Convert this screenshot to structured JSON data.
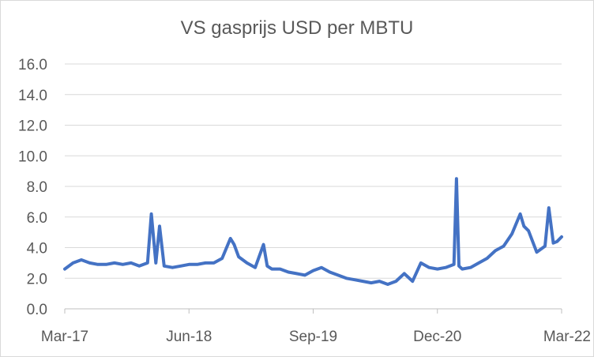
{
  "chart_data": {
    "type": "line",
    "title": "VS gasprijs USD per MBTU",
    "xlabel": "",
    "ylabel": "",
    "x_range": [
      "Mar-17",
      "Mar-22"
    ],
    "x_ticks": [
      "Mar-17",
      "Jun-18",
      "Sep-19",
      "Dec-20",
      "Mar-22"
    ],
    "y_ticks": [
      "0.0",
      "2.0",
      "4.0",
      "6.0",
      "8.0",
      "10.0",
      "12.0",
      "14.0",
      "16.0"
    ],
    "ylim": [
      0,
      16
    ],
    "grid": true,
    "legend": "none",
    "color": "#4472c4",
    "series": [
      {
        "x": [
          "Mar-17",
          "Apr-17",
          "May-17",
          "Jun-17",
          "Jul-17",
          "Aug-17",
          "Sep-17",
          "Oct-17",
          "Nov-17",
          "Dec-17",
          "Jan-18",
          "Jan-18",
          "Feb-18",
          "Feb-18",
          "Mar-18",
          "Apr-18",
          "May-18",
          "Jun-18",
          "Jul-18",
          "Aug-18",
          "Sep-18",
          "Oct-18",
          "Nov-18",
          "Nov-18",
          "Dec-18",
          "Jan-19",
          "Feb-19",
          "Mar-19",
          "Mar-19",
          "Apr-19",
          "May-19",
          "Jun-19",
          "Jul-19",
          "Aug-19",
          "Sep-19",
          "Oct-19",
          "Nov-19",
          "Dec-19",
          "Jan-20",
          "Feb-20",
          "Mar-20",
          "Apr-20",
          "May-20",
          "Jun-20",
          "Jul-20",
          "Aug-20",
          "Sep-20",
          "Oct-20",
          "Nov-20",
          "Dec-20",
          "Jan-21",
          "Feb-21",
          "Feb-21",
          "Feb-21",
          "Mar-21",
          "Apr-21",
          "May-21",
          "Jun-21",
          "Jul-21",
          "Aug-21",
          "Sep-21",
          "Oct-21",
          "Oct-21",
          "Nov-21",
          "Dec-21",
          "Jan-22",
          "Jan-22",
          "Feb-22",
          "Feb-22",
          "Mar-22"
        ],
        "values": [
          2.6,
          3.0,
          3.2,
          3.0,
          2.9,
          2.9,
          3.0,
          2.9,
          3.0,
          2.8,
          3.0,
          6.2,
          3.0,
          5.4,
          2.8,
          2.7,
          2.8,
          2.9,
          2.9,
          3.0,
          3.0,
          3.3,
          4.6,
          4.2,
          3.4,
          3.0,
          2.7,
          4.2,
          2.8,
          2.6,
          2.6,
          2.4,
          2.3,
          2.2,
          2.5,
          2.7,
          2.4,
          2.2,
          2.0,
          1.9,
          1.8,
          1.7,
          1.8,
          1.6,
          1.8,
          2.3,
          1.8,
          3.0,
          2.7,
          2.6,
          2.7,
          2.9,
          8.5,
          2.8,
          2.6,
          2.7,
          3.0,
          3.3,
          3.8,
          4.1,
          4.9,
          6.2,
          5.4,
          5.1,
          3.7,
          4.1,
          6.6,
          4.3,
          4.4,
          4.7
        ]
      }
    ]
  }
}
